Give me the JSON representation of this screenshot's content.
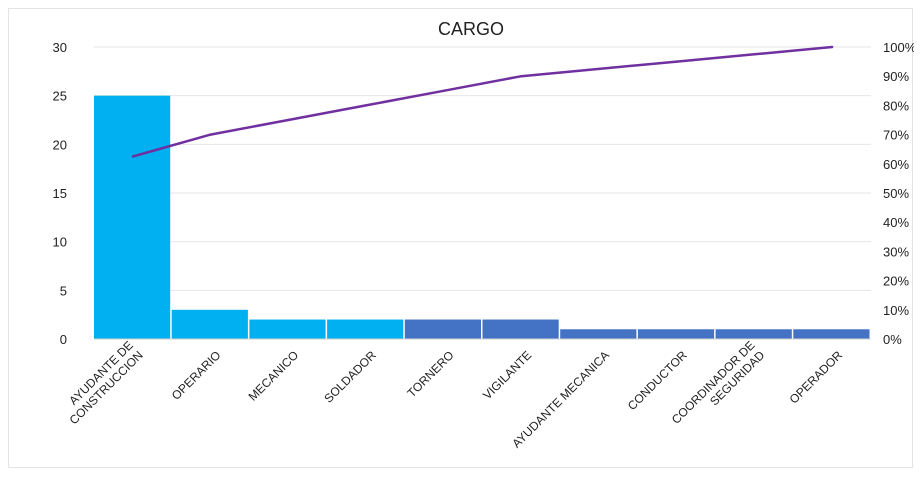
{
  "chart_data": {
    "type": "bar",
    "title": "CARGO",
    "categories": [
      [
        "AYUDANTE DE",
        "CONSTRUCCION"
      ],
      [
        "OPERARIO"
      ],
      [
        "MECANICO"
      ],
      [
        "SOLDADOR"
      ],
      [
        "TORNERO"
      ],
      [
        "VIGILANTE"
      ],
      [
        "AYUDANTE MECANICA"
      ],
      [
        "CONDUCTOR"
      ],
      [
        "COORDINADOR DE",
        "SEGURIDAD"
      ],
      [
        "OPERADOR"
      ]
    ],
    "values": [
      25,
      3,
      2,
      2,
      2,
      2,
      1,
      1,
      1,
      1
    ],
    "cumulative_percent": [
      62.5,
      70,
      75,
      80,
      85,
      90,
      92.5,
      95,
      97.5,
      100
    ],
    "ylim": [
      0,
      30
    ],
    "yticks": [
      "0",
      "5",
      "10",
      "15",
      "20",
      "25",
      "30"
    ],
    "y2lim": [
      0,
      100
    ],
    "y2ticks": [
      "0%",
      "10%",
      "20%",
      "30%",
      "40%",
      "50%",
      "60%",
      "70%",
      "80%",
      "90%",
      "100%"
    ],
    "grid": true,
    "colors": {
      "bar_primary": "#00b0f0",
      "bar_secondary": "#4472c4",
      "line": "#7030a0",
      "grid": "#e6e6e6"
    }
  }
}
